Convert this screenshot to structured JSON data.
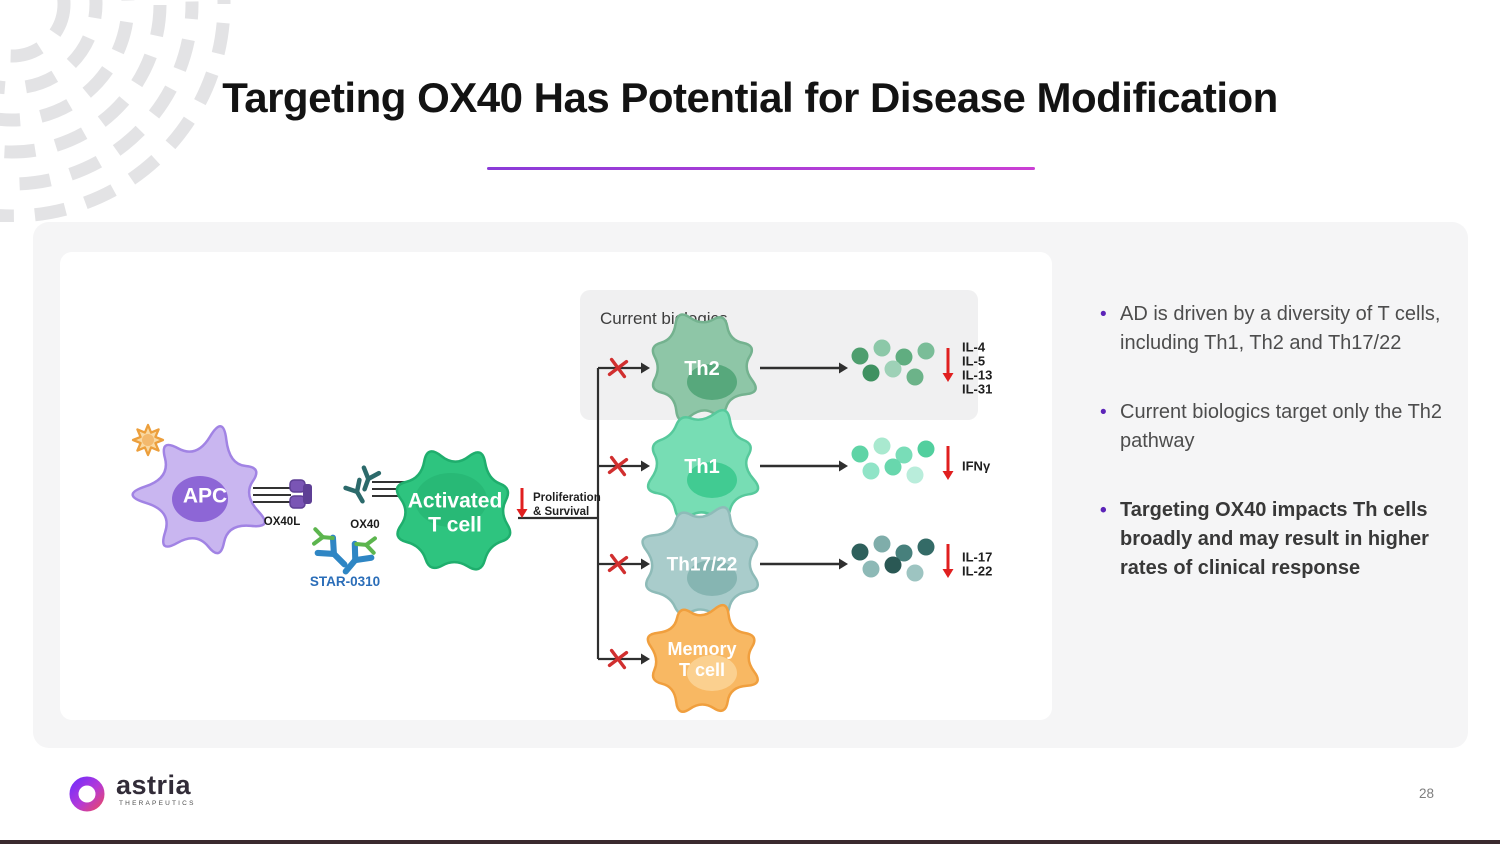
{
  "slide": {
    "title": "Targeting OX40 Has Potential for Disease Modification",
    "page_number": "28"
  },
  "accent": {
    "underline_from": "#8a3bd8",
    "underline_to": "#cb3fd4",
    "bullet_marker": "#5c24b8",
    "bottom_bar": "#3a2a2e",
    "arrow_color": "#2f2f2f",
    "block_x_color": "#d12f2f",
    "down_arrow_color": "#e01f1f"
  },
  "diagram": {
    "biologics_box_label": "Current biologics",
    "apc": {
      "label": "APC",
      "receptor_label": "OX40L",
      "body": "#c9b6f0",
      "edge": "#a183e4",
      "nucleus": "#8d66d6",
      "star_fill": "#f9d9a3",
      "star_edge": "#ec9f3c"
    },
    "antibody": {
      "receptor_label": "OX40",
      "drug_label": "STAR-0310",
      "drug_label_color": "#2a6db8",
      "teal": "#2c6a6b",
      "blue": "#2f86c4",
      "green": "#5cb54e"
    },
    "t_cell": {
      "label": [
        "Activated",
        "T cell"
      ],
      "body": "#2ec47f",
      "edge": "#1fae6d",
      "nucleus": "#28b976"
    },
    "proliferation": {
      "label": [
        "Proliferation",
        "& Survival"
      ]
    },
    "pathways": [
      {
        "name": "Th2",
        "label": [
          "Th2"
        ],
        "cytokines": [
          "IL-4",
          "IL-5",
          "IL-13",
          "IL-31"
        ],
        "body": "#8ec6a7",
        "edge": "#74b28f",
        "nucleus": "#57a87c",
        "dots": [
          "#4e9e6e",
          "#8cc8a8",
          "#60ad80",
          "#7abd98",
          "#3f9161",
          "#9ed1b7",
          "#6cb389"
        ]
      },
      {
        "name": "Th1",
        "label": [
          "Th1"
        ],
        "cytokines": [
          "IFNγ"
        ],
        "body": "#77ddb4",
        "edge": "#57c99c",
        "nucleus": "#41cb92",
        "dots": [
          "#5fd4a6",
          "#a9e9cf",
          "#79ddb8",
          "#52cf9e",
          "#90e4c7",
          "#68d7ad",
          "#b9eddb"
        ]
      },
      {
        "name": "Th17/22",
        "label": [
          "Th17/22"
        ],
        "cytokines": [
          "IL-17",
          "IL-22"
        ],
        "body": "#a9cccb",
        "edge": "#8ebbb8",
        "nucleus": "#86b5b2",
        "dots": [
          "#2e605c",
          "#7fadaa",
          "#47807c",
          "#346b67",
          "#8db9b6",
          "#2a5854",
          "#9dc4c1"
        ]
      },
      {
        "name": "Memory T cell",
        "label": [
          "Memory",
          "T cell"
        ],
        "cytokines": [],
        "body": "#f8b863",
        "edge": "#f09f3e",
        "nucleus": "#fbd08f",
        "dots": []
      }
    ]
  },
  "bullets": [
    {
      "text": "AD is driven by a diversity of T cells, including Th1, Th2 and Th17/22",
      "bold": false
    },
    {
      "text": "Current biologics target only the Th2 pathway",
      "bold": false
    },
    {
      "text": "Targeting OX40 impacts Th cells broadly and may result in higher rates of clinical response",
      "bold": true
    }
  ],
  "footer": {
    "brand": "astria",
    "brand_sub": "THERAPEUTICS"
  }
}
